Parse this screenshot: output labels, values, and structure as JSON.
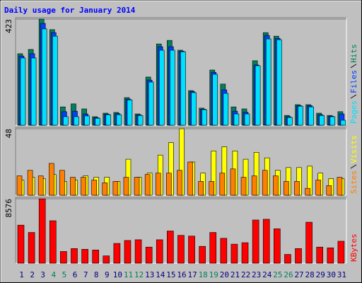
{
  "chart_data": [
    {
      "type": "bar",
      "title": "Daily usage for January 2014",
      "ylim": [
        0,
        423
      ],
      "yticks": [
        423
      ],
      "series": [
        {
          "name": "Hits",
          "color": "#00805c",
          "values": [
            285,
            302,
            423,
            381,
            73,
            85,
            65,
            34,
            48,
            51,
            110,
            45,
            192,
            324,
            338,
            299,
            138,
            68,
            220,
            164,
            73,
            65,
            257,
            369,
            355,
            39,
            82,
            82,
            48,
            39,
            54
          ]
        },
        {
          "name": "Files",
          "color": "#0040ff",
          "values": [
            276,
            285,
            406,
            369,
            54,
            56,
            45,
            30,
            44,
            46,
            104,
            41,
            180,
            313,
            313,
            295,
            134,
            64,
            211,
            141,
            56,
            52,
            240,
            358,
            346,
            34,
            78,
            78,
            42,
            36,
            45
          ]
        },
        {
          "name": "Pages",
          "color": "#00e0ff",
          "values": [
            268,
            268,
            384,
            355,
            34,
            34,
            37,
            28,
            42,
            42,
            101,
            39,
            172,
            299,
            299,
            293,
            130,
            62,
            203,
            127,
            45,
            45,
            237,
            344,
            341,
            31,
            76,
            73,
            39,
            34,
            20
          ]
        }
      ]
    },
    {
      "type": "bar",
      "ylim": [
        0,
        48
      ],
      "yticks": [
        48
      ],
      "series": [
        {
          "name": "Visits",
          "color": "#ffff00",
          "values": [
            11,
            13,
            12,
            15,
            10,
            11,
            14,
            13,
            13,
            10,
            26,
            13,
            16,
            29,
            38,
            48,
            24,
            16,
            32,
            35,
            32,
            26,
            31,
            27,
            18,
            20,
            20,
            21,
            16,
            12,
            12
          ]
        },
        {
          "name": "Sites",
          "color": "#ff8000",
          "values": [
            14,
            18,
            14,
            23,
            18,
            13,
            13,
            11,
            9,
            10,
            13,
            13,
            15,
            16,
            16,
            18,
            24,
            10,
            10,
            16,
            19,
            13,
            14,
            18,
            14,
            10,
            10,
            5,
            11,
            7,
            13
          ]
        }
      ]
    },
    {
      "type": "bar",
      "ylim": [
        0,
        8576
      ],
      "yticks": [
        8576
      ],
      "categories": [
        "1",
        "2",
        "3",
        "4",
        "5",
        "6",
        "7",
        "8",
        "9",
        "10",
        "11",
        "12",
        "13",
        "14",
        "15",
        "16",
        "17",
        "18",
        "19",
        "20",
        "21",
        "22",
        "23",
        "24",
        "25",
        "26",
        "27",
        "28",
        "29",
        "30",
        "31"
      ],
      "category_colors": [
        "#000080",
        "#000080",
        "#000080",
        "#00805c",
        "#00805c",
        "#000080",
        "#000080",
        "#000080",
        "#000080",
        "#000080",
        "#00805c",
        "#00805c",
        "#000080",
        "#000080",
        "#000080",
        "#000080",
        "#000080",
        "#00805c",
        "#00805c",
        "#000080",
        "#000080",
        "#000080",
        "#000080",
        "#000080",
        "#00805c",
        "#00805c",
        "#000080",
        "#000080",
        "#000080",
        "#000080",
        "#000080"
      ],
      "series": [
        {
          "name": "KBytes",
          "color": "#ff0000",
          "values": [
            5070,
            4095,
            8576,
            5655,
            1560,
            1950,
            1853,
            1755,
            975,
            2633,
            3023,
            3120,
            2145,
            3120,
            4290,
            3705,
            3608,
            2243,
            4095,
            3315,
            2535,
            2730,
            5753,
            5850,
            4583,
            1170,
            1950,
            5460,
            2145,
            2048,
            2925
          ]
        }
      ]
    }
  ]
}
